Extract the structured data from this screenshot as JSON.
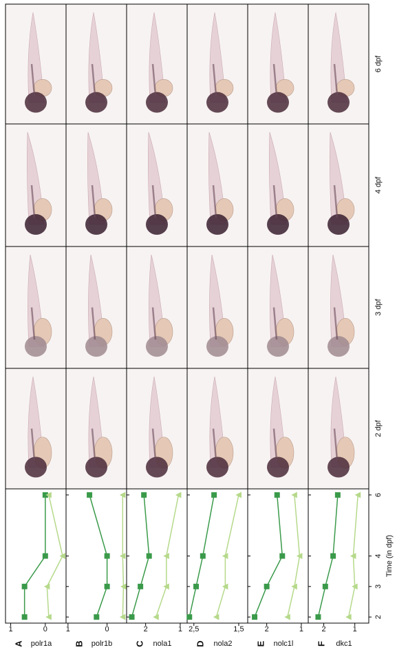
{
  "columns": [
    "2 dpf",
    "3 dpf",
    "4 dpf",
    "6 dpf"
  ],
  "chart_data": [
    {
      "type": "line",
      "panel": "A",
      "title": "polr1a",
      "x": [
        2,
        3,
        4,
        6
      ],
      "xlim": [
        1.8,
        6.2
      ],
      "xticks": [
        2,
        3,
        4,
        6
      ],
      "ylim": [
        -0.6,
        1.15
      ],
      "yticks": [
        0,
        1
      ],
      "series": [
        {
          "color": "#3a9a4a",
          "marker": "square",
          "values": [
            0.6,
            0.6,
            0,
            0
          ]
        },
        {
          "color": "#b5d98a",
          "marker": "triangle",
          "values": [
            -0.1,
            -0.05,
            -0.5,
            -0.1
          ]
        }
      ]
    },
    {
      "type": "line",
      "panel": "B",
      "title": "polr1b",
      "x": [
        2,
        3,
        4,
        6
      ],
      "xlim": [
        1.8,
        6.2
      ],
      "xticks": [
        2,
        3,
        4,
        6
      ],
      "ylim": [
        -0.5,
        1.05
      ],
      "yticks": [
        0,
        1
      ],
      "series": [
        {
          "color": "#3a9a4a",
          "marker": "square",
          "values": [
            0.27,
            0,
            0,
            0.45
          ]
        },
        {
          "color": "#b5d98a",
          "marker": "triangle",
          "values": [
            -0.4,
            -0.42,
            -0.4,
            -0.4
          ]
        }
      ]
    },
    {
      "type": "line",
      "panel": "C",
      "title": "nola1",
      "x": [
        2,
        3,
        4,
        6
      ],
      "xlim": [
        1.8,
        6.2
      ],
      "xticks": [
        2,
        3,
        4,
        6
      ],
      "ylim": [
        0.8,
        2.55
      ],
      "yticks": [
        1,
        2
      ],
      "series": [
        {
          "color": "#3a9a4a",
          "marker": "square",
          "values": [
            2.4,
            2.15,
            1.9,
            2.05
          ]
        },
        {
          "color": "#b5d98a",
          "marker": "triangle",
          "values": [
            1.7,
            1.4,
            1.4,
            1.05
          ]
        }
      ]
    },
    {
      "type": "line",
      "panel": "D",
      "title": "nola2",
      "x": [
        2,
        3,
        4,
        6
      ],
      "xlim": [
        1.8,
        6.2
      ],
      "xticks": [
        2,
        3,
        4,
        6
      ],
      "ylim": [
        1.3,
        2.65
      ],
      "yticks": [
        {
          "value": 1.5,
          "label": "1,5"
        },
        {
          "value": 2.5,
          "label": "2,5"
        }
      ],
      "series": [
        {
          "color": "#3a9a4a",
          "marker": "square",
          "values": [
            2.6,
            2.45,
            2.3,
            2.05
          ]
        },
        {
          "color": "#b5d98a",
          "marker": "triangle",
          "values": [
            2.0,
            1.8,
            1.8,
            1.5
          ]
        }
      ]
    },
    {
      "type": "line",
      "panel": "E",
      "title": "nolc1l",
      "x": [
        2,
        3,
        4,
        6
      ],
      "xlim": [
        1.8,
        6.2
      ],
      "xticks": [
        2,
        3,
        4,
        6
      ],
      "ylim": [
        0.8,
        2.55
      ],
      "yticks": [
        1,
        2
      ],
      "series": [
        {
          "color": "#3a9a4a",
          "marker": "square",
          "values": [
            2.35,
            2,
            1.55,
            1.7
          ]
        },
        {
          "color": "#b5d98a",
          "marker": "triangle",
          "values": [
            1.4,
            1.2,
            1.05,
            1.2
          ]
        }
      ]
    },
    {
      "type": "line",
      "panel": "F",
      "title": "dkc1",
      "x": [
        2,
        3,
        4,
        6
      ],
      "xlim": [
        1.8,
        6.2
      ],
      "xticks": [
        2,
        3,
        4,
        6
      ],
      "ylim": [
        0.55,
        2.5
      ],
      "yticks": [
        1,
        2
      ],
      "xlabel": "Time (in dpf)",
      "series": [
        {
          "color": "#3a9a4a",
          "marker": "square",
          "values": [
            2.18,
            1.95,
            1.7,
            1.55
          ]
        },
        {
          "color": "#b5d98a",
          "marker": "triangle",
          "values": [
            1.2,
            1.0,
            1.05,
            0.9
          ]
        }
      ]
    }
  ]
}
